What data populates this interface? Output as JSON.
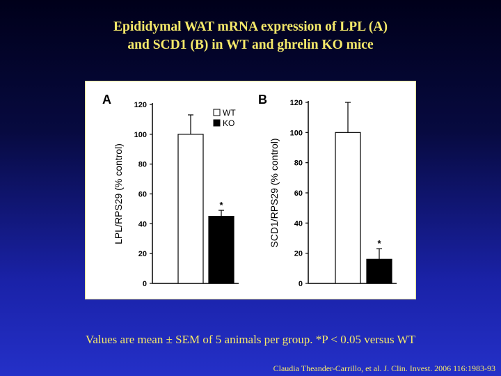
{
  "slide": {
    "title_line1": "Epididymal WAT mRNA expression of LPL (A)",
    "title_line2": "and SCD1 (B) in WT and ghrelin KO mice",
    "footnote": "Values are mean ± SEM of 5 animals per group. *P < 0.05 versus WT",
    "citation": "Claudia Theander-Carrillo, et al. J. Clin. Invest. 2006 116:1983-93"
  },
  "colors": {
    "title_text": "#f5e96a",
    "wt_bar": "#ffffff",
    "ko_bar": "#000000"
  },
  "chart_data": [
    {
      "type": "bar",
      "panel_label": "A",
      "categories": [
        "WT",
        "KO"
      ],
      "values": [
        100,
        45
      ],
      "error": [
        13,
        4
      ],
      "significance": [
        "",
        "*"
      ],
      "ylabel": "LPL/RPS29 (% control)",
      "yticks": [
        "0",
        "20",
        "40",
        "60",
        "80",
        "100",
        "120"
      ],
      "ylim": [
        0,
        120
      ],
      "legend": [
        "WT",
        "KO"
      ],
      "legend_position": "top-right"
    },
    {
      "type": "bar",
      "panel_label": "B",
      "categories": [
        "WT",
        "KO"
      ],
      "values": [
        100,
        16
      ],
      "error": [
        20,
        7
      ],
      "significance": [
        "",
        "*"
      ],
      "ylabel": "SCD1/RPS29 (% control)",
      "yticks": [
        "0",
        "20",
        "40",
        "60",
        "80",
        "100",
        "120"
      ],
      "ylim": [
        0,
        120
      ]
    }
  ]
}
